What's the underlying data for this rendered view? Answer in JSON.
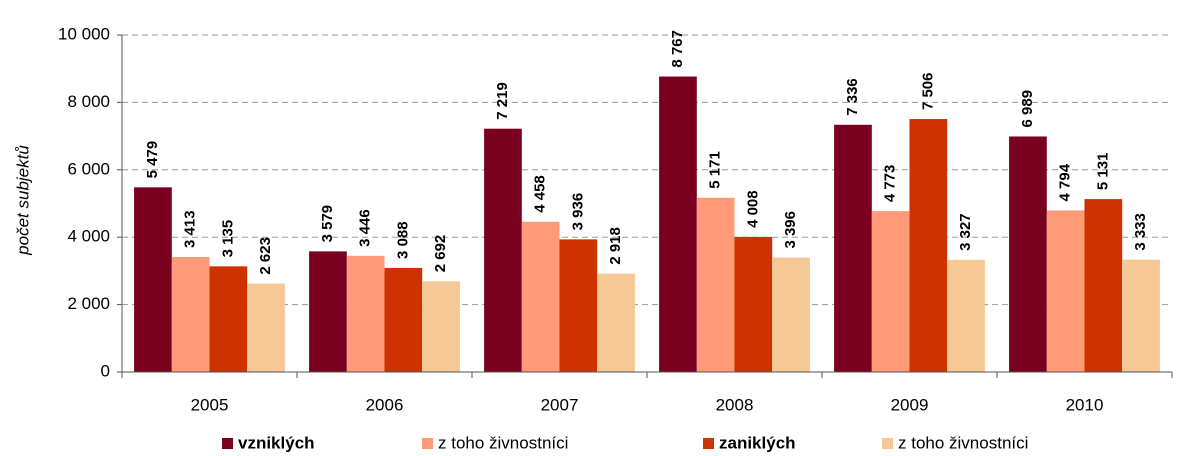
{
  "chart_data": {
    "type": "bar",
    "y_label": "počet subjektů",
    "categories": [
      "2005",
      "2006",
      "2007",
      "2008",
      "2009",
      "2010"
    ],
    "series": [
      {
        "name": "vzniklých",
        "color": "#7a0020",
        "label_color": "#7a0020",
        "values": [
          5479,
          3579,
          7219,
          8767,
          7336,
          6989
        ],
        "value_labels": [
          "5 479",
          "3 579",
          "7 219",
          "8 767",
          "7 336",
          "6 989"
        ]
      },
      {
        "name": "z toho živnostníci",
        "color": "#ff9a78",
        "label_color": "#f7a487",
        "values": [
          3413,
          3446,
          4458,
          5171,
          4773,
          4794
        ],
        "value_labels": [
          "3 413",
          "3 446",
          "4 458",
          "5 171",
          "4 773",
          "4 794"
        ]
      },
      {
        "name": "zaniklých",
        "color": "#cc3300",
        "label_color": "#cc3300",
        "values": [
          3135,
          3088,
          3936,
          4008,
          7506,
          5131
        ],
        "value_labels": [
          "3 135",
          "3 088",
          "3 936",
          "4 008",
          "7 506",
          "5 131"
        ]
      },
      {
        "name": "z toho živnostníci",
        "color": "#f5c896",
        "label_color": "#f0a860",
        "values": [
          2623,
          2692,
          2918,
          3396,
          3327,
          3333
        ],
        "value_labels": [
          "2 623",
          "2 692",
          "2 918",
          "3 396",
          "3 327",
          "3 333"
        ]
      }
    ],
    "ylim": [
      0,
      10000
    ],
    "yticks": [
      0,
      {
        "value": 2000,
        "label": "2 000"
      },
      {
        "value": 4000,
        "label": "4 000"
      },
      {
        "value": 6000,
        "label": "6 000"
      },
      {
        "value": 8000,
        "label": "8 000"
      },
      {
        "value": 10000,
        "label": "10 000"
      }
    ],
    "grid": true,
    "legend": "bottom"
  }
}
